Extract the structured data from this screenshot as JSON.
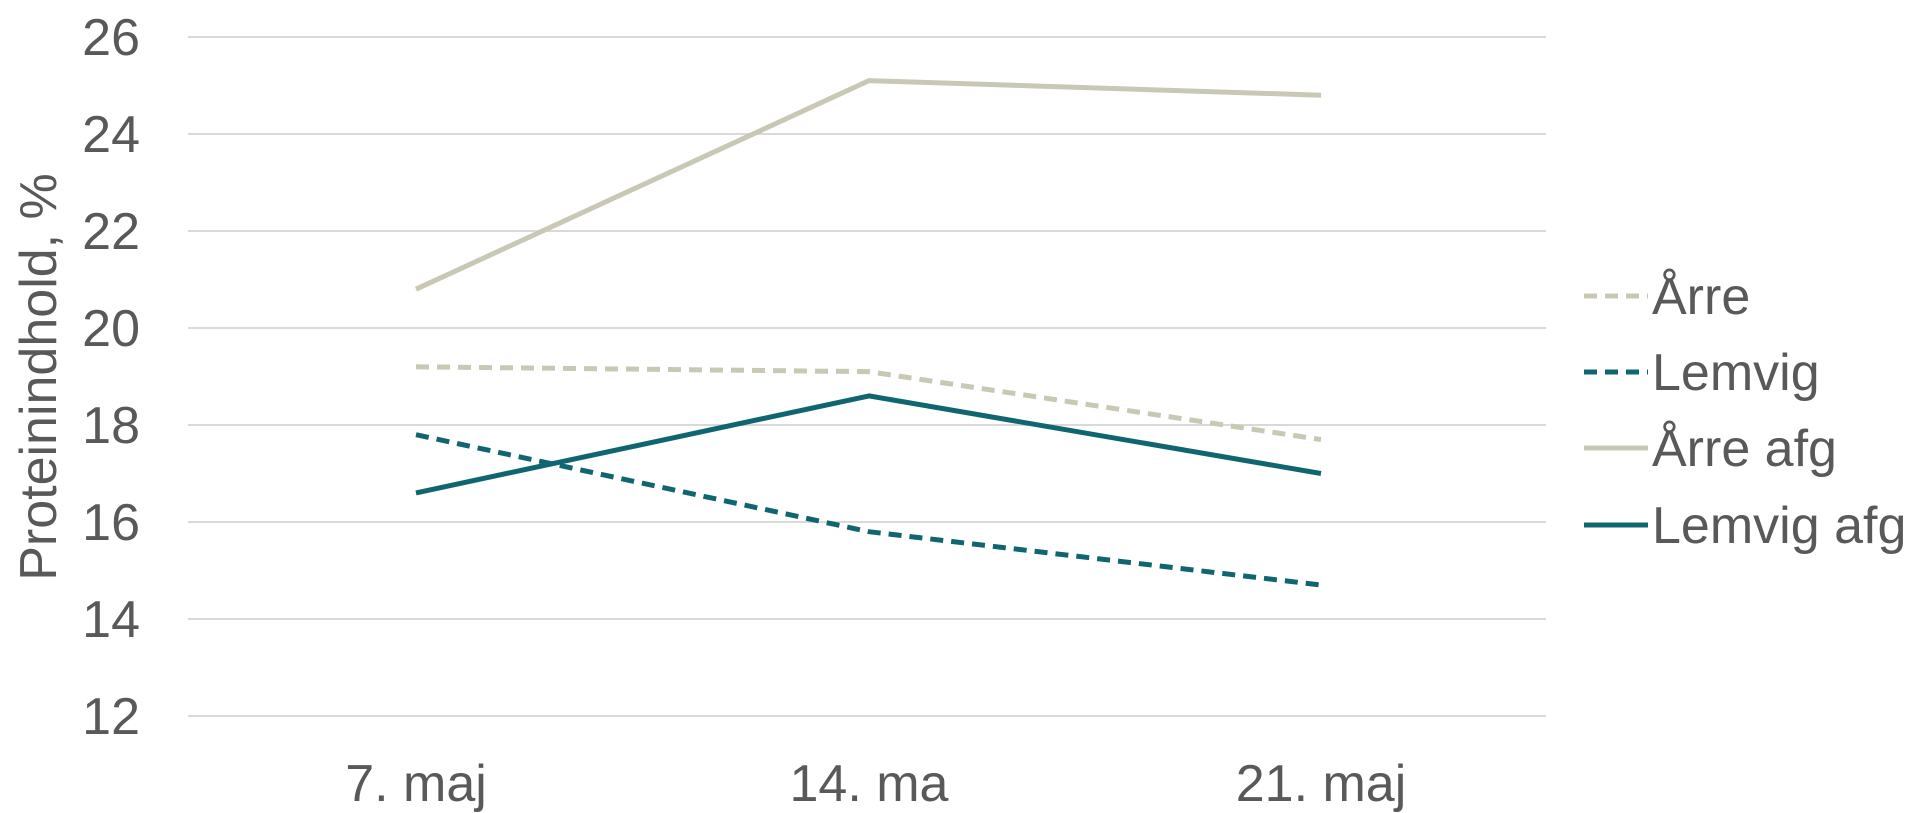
{
  "chart_data": {
    "type": "line",
    "title": "",
    "xlabel": "",
    "ylabel": "Proteinindhold, %",
    "categories": [
      "7. maj",
      "14. ma",
      "21. maj"
    ],
    "ylim": [
      12,
      26
    ],
    "yticks": [
      "12",
      "14",
      "16",
      "18",
      "20",
      "22",
      "24",
      "26"
    ],
    "grid": true,
    "legend_position": "right",
    "series": [
      {
        "name": "Årre",
        "values": [
          19.2,
          19.1,
          17.7
        ],
        "color": "#c8c8b4",
        "style": "dashed"
      },
      {
        "name": "Lemvig",
        "values": [
          17.8,
          15.8,
          14.7
        ],
        "color": "#0f6670",
        "style": "dashed"
      },
      {
        "name": "Årre afg",
        "values": [
          20.8,
          25.1,
          24.8
        ],
        "color": "#c8c8b4",
        "style": "solid"
      },
      {
        "name": "Lemvig afg",
        "values": [
          16.6,
          18.6,
          17.0
        ],
        "color": "#0f6670",
        "style": "solid"
      }
    ]
  }
}
